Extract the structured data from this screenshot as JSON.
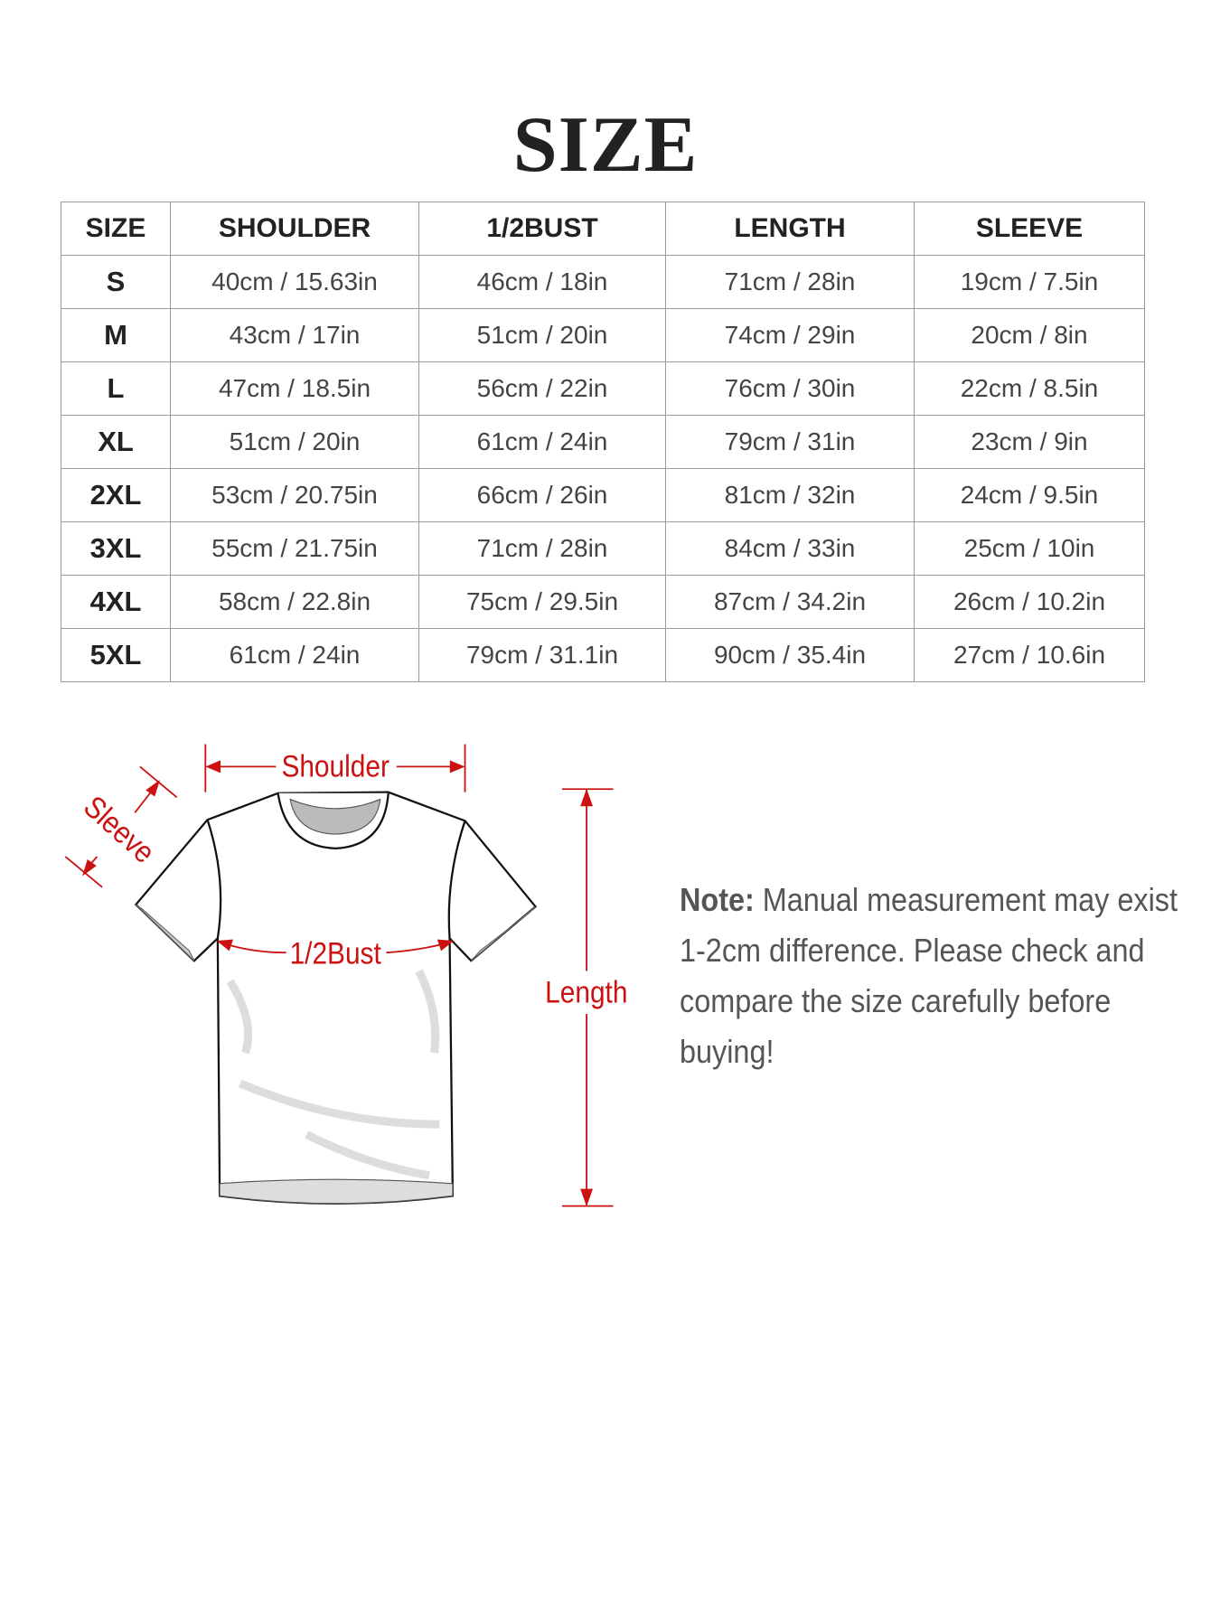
{
  "title": "SIZE",
  "table": {
    "headers": [
      "SIZE",
      "SHOULDER",
      "1/2BUST",
      "LENGTH",
      "SLEEVE"
    ],
    "rows": [
      [
        "S",
        "40cm / 15.63in",
        "46cm / 18in",
        "71cm / 28in",
        "19cm / 7.5in"
      ],
      [
        "M",
        "43cm / 17in",
        "51cm / 20in",
        "74cm / 29in",
        "20cm / 8in"
      ],
      [
        "L",
        "47cm / 18.5in",
        "56cm / 22in",
        "76cm / 30in",
        "22cm / 8.5in"
      ],
      [
        "XL",
        "51cm / 20in",
        "61cm / 24in",
        "79cm / 31in",
        "23cm / 9in"
      ],
      [
        "2XL",
        "53cm / 20.75in",
        "66cm / 26in",
        "81cm / 32in",
        "24cm / 9.5in"
      ],
      [
        "3XL",
        "55cm / 21.75in",
        "71cm / 28in",
        "84cm / 33in",
        "25cm / 10in"
      ],
      [
        "4XL",
        "58cm / 22.8in",
        "75cm / 29.5in",
        "87cm / 34.2in",
        "26cm / 10.2in"
      ],
      [
        "5XL",
        "61cm / 24in",
        "79cm / 31.1in",
        "90cm / 35.4in",
        "27cm / 10.6in"
      ]
    ]
  },
  "diagram": {
    "labels": {
      "shoulder": "Shoulder",
      "sleeve": "Sleeve",
      "bust": "1/2Bust",
      "length": "Length"
    },
    "accent_color": "#cc1111"
  },
  "note": {
    "label": "Note:",
    "text": " Manual measurement may exist 1-2cm difference. Please check and compare the size carefully before buying!"
  }
}
